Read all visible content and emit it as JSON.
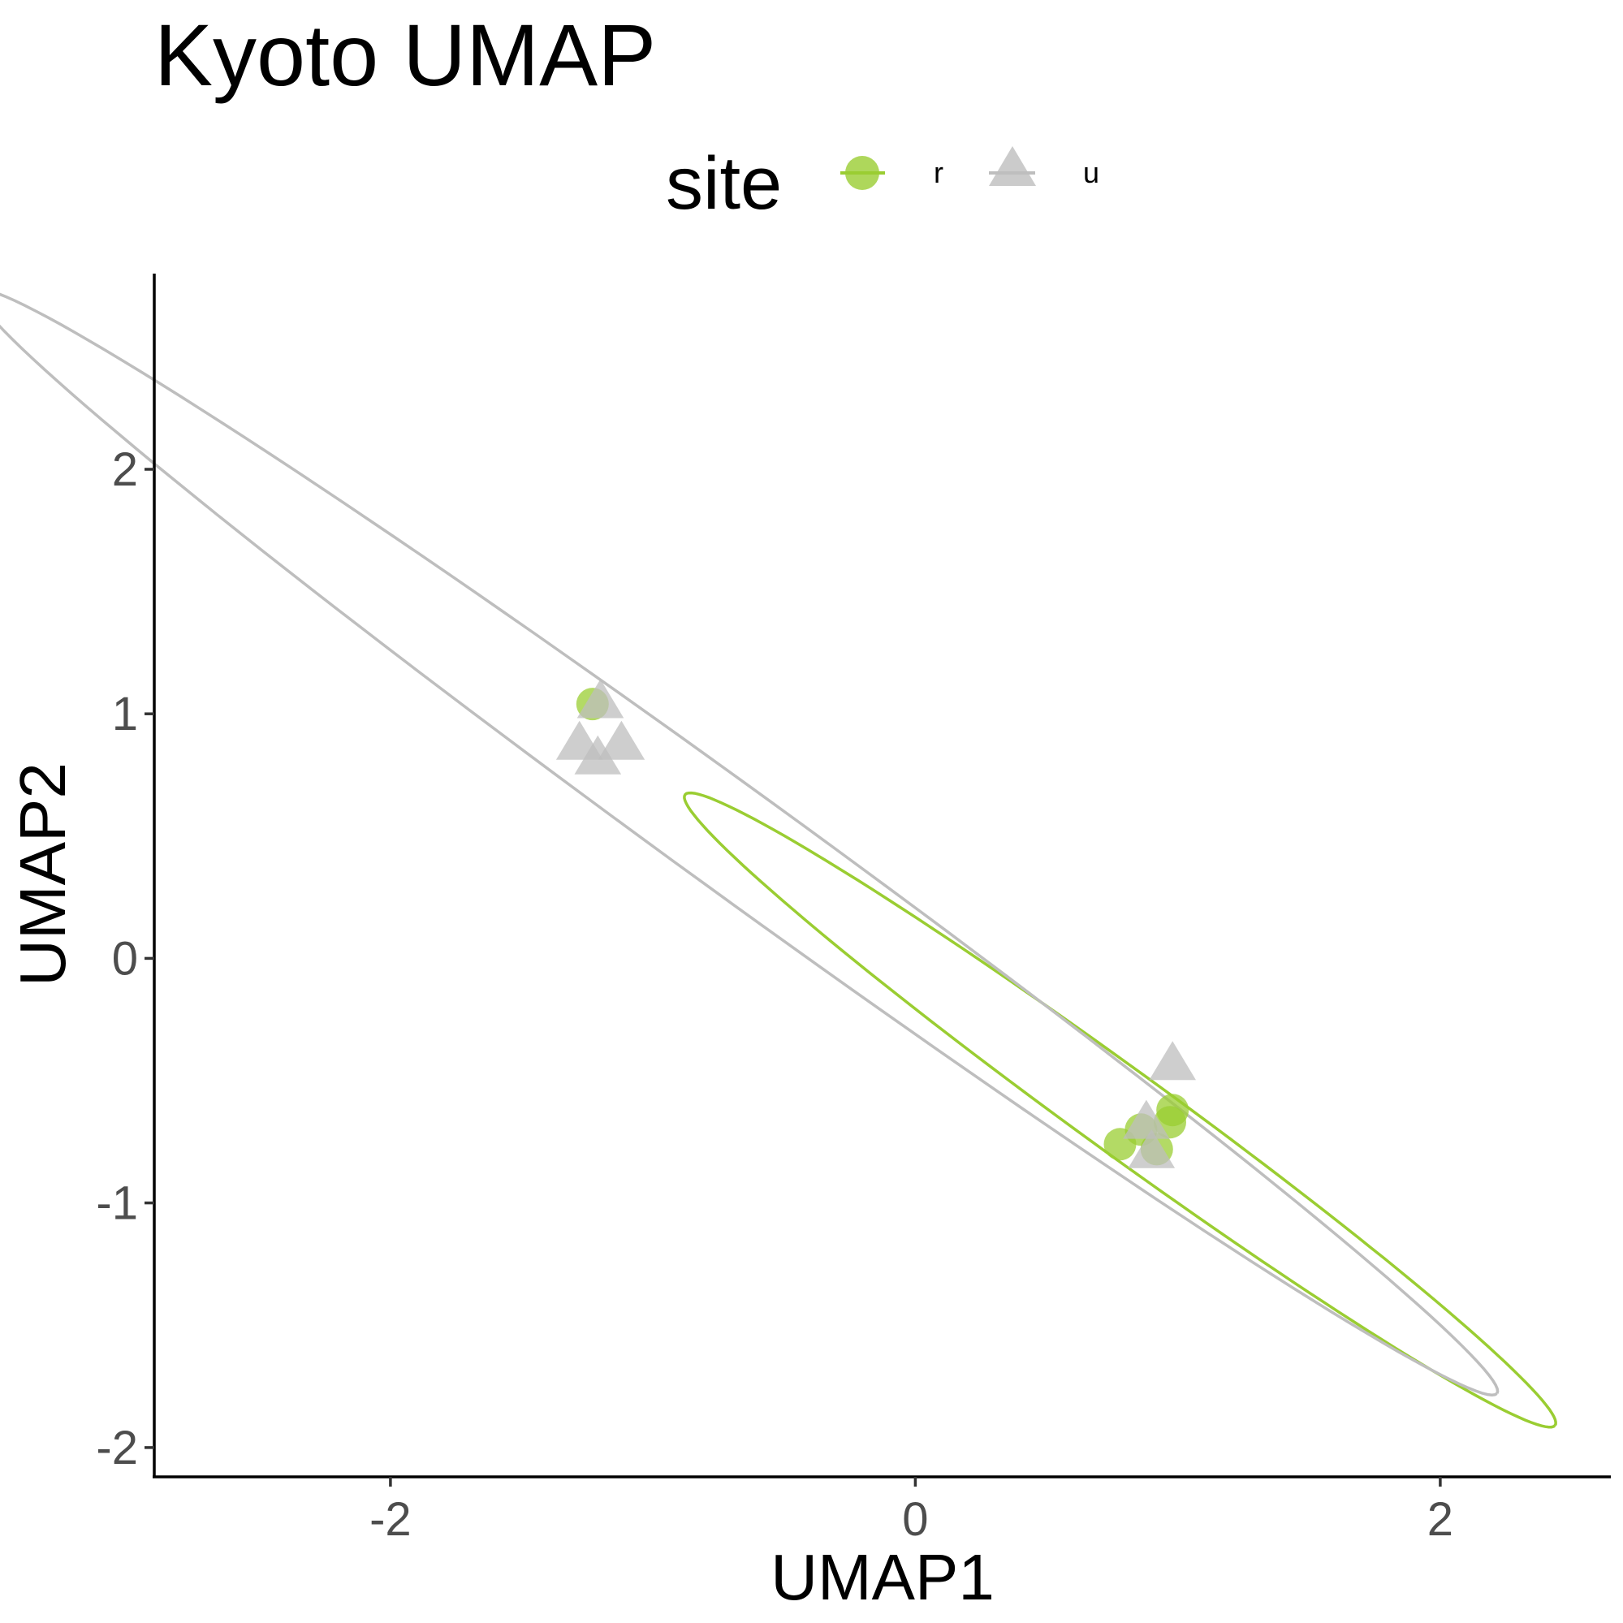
{
  "chart_data": {
    "type": "scatter",
    "title": "Kyoto UMAP",
    "xlabel": "UMAP1",
    "ylabel": "UMAP2",
    "xlim": [
      -2.9,
      2.65
    ],
    "ylim": [
      -2.12,
      2.8
    ],
    "x_ticks": [
      -2,
      0,
      2
    ],
    "y_ticks": [
      -2,
      -1,
      0,
      1,
      2
    ],
    "x_tick_labels": [
      "-2",
      "0",
      "2"
    ],
    "y_tick_labels": [
      "-2",
      "-1",
      "0",
      "1",
      "2"
    ],
    "grid": false,
    "legend": {
      "title": "site",
      "position": "top",
      "entries": [
        {
          "label": "r",
          "shape": "circle",
          "color": "#9acd32"
        },
        {
          "label": "u",
          "shape": "triangle",
          "color": "#bebebe"
        }
      ]
    },
    "series": [
      {
        "name": "r",
        "shape": "circle",
        "color": "#9acd32",
        "points": [
          {
            "x": -1.23,
            "y": 1.04
          },
          {
            "x": 0.98,
            "y": -0.62
          },
          {
            "x": 0.97,
            "y": -0.67
          },
          {
            "x": 0.86,
            "y": -0.7
          },
          {
            "x": 0.78,
            "y": -0.76
          },
          {
            "x": 0.92,
            "y": -0.78
          }
        ],
        "ellipse": {
          "cx": 0.78,
          "cy": -0.62,
          "a": 2.1,
          "b": 0.168,
          "angle_deg": -37.9
        }
      },
      {
        "name": "u",
        "shape": "triangle",
        "color": "#bebebe",
        "points": [
          {
            "x": -1.2,
            "y": 1.05
          },
          {
            "x": -1.28,
            "y": 0.88
          },
          {
            "x": -1.12,
            "y": 0.88
          },
          {
            "x": -1.21,
            "y": 0.82
          },
          {
            "x": 0.98,
            "y": -0.43
          },
          {
            "x": 0.88,
            "y": -0.67
          },
          {
            "x": 0.9,
            "y": -0.79
          }
        ],
        "ellipse": {
          "cx": -0.68,
          "cy": 0.475,
          "a": 3.67,
          "b": 0.21,
          "angle_deg": -37.9
        }
      }
    ]
  }
}
